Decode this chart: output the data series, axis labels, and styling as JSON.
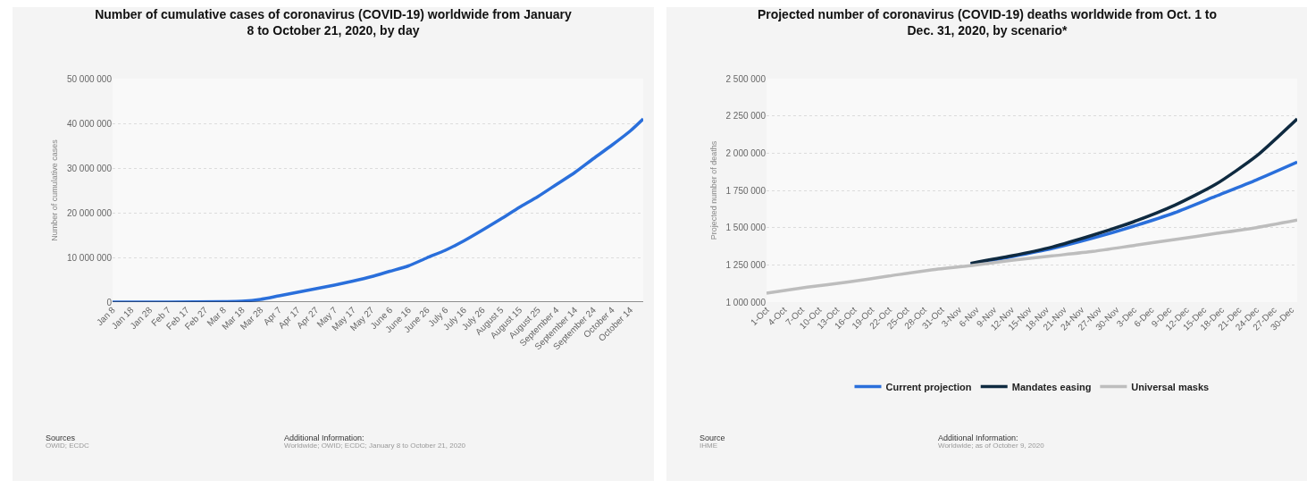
{
  "chart_data": [
    {
      "type": "line",
      "title": "Number of cumulative cases of coronavirus (COVID-19) worldwide from January 8 to October 21, 2020, by day",
      "ylabel": "Number of cumulative cases",
      "x": [
        "2020-01-08",
        "2020-02-07",
        "2020-03-08",
        "2020-03-18",
        "2020-03-28",
        "2020-04-07",
        "2020-04-17",
        "2020-04-27",
        "2020-05-07",
        "2020-05-17",
        "2020-05-27",
        "2020-06-06",
        "2020-06-16",
        "2020-06-26",
        "2020-07-06",
        "2020-07-16",
        "2020-07-26",
        "2020-08-05",
        "2020-08-15",
        "2020-08-25",
        "2020-09-04",
        "2020-09-14",
        "2020-09-24",
        "2020-10-04",
        "2020-10-14",
        "2020-10-21"
      ],
      "series": [
        {
          "color": "#2a6fdb",
          "values": [
            0,
            0,
            100000,
            200000,
            600000,
            1400000,
            2200000,
            3000000,
            3800000,
            4700000,
            5700000,
            6900000,
            8100000,
            9900000,
            11600000,
            13700000,
            16100000,
            18600000,
            21200000,
            23600000,
            26300000,
            29000000,
            32100000,
            35100000,
            38300000,
            41000000
          ]
        }
      ],
      "xlim": [
        "2020-01-08",
        "2020-10-21"
      ],
      "xticks": [
        {
          "value": "2020-01-08",
          "label": "Jan 8"
        },
        {
          "value": "2020-01-18",
          "label": "Jan 18"
        },
        {
          "value": "2020-01-28",
          "label": "Jan 28"
        },
        {
          "value": "2020-02-07",
          "label": "Feb 7"
        },
        {
          "value": "2020-02-17",
          "label": "Feb 17"
        },
        {
          "value": "2020-02-27",
          "label": "Feb 27"
        },
        {
          "value": "2020-03-08",
          "label": "Mar 8"
        },
        {
          "value": "2020-03-18",
          "label": "Mar 18"
        },
        {
          "value": "2020-03-28",
          "label": "Mar 28"
        },
        {
          "value": "2020-04-07",
          "label": "Apr 7"
        },
        {
          "value": "2020-04-17",
          "label": "Apr 17"
        },
        {
          "value": "2020-04-27",
          "label": "Apr 27"
        },
        {
          "value": "2020-05-07",
          "label": "May 7"
        },
        {
          "value": "2020-05-17",
          "label": "May 17"
        },
        {
          "value": "2020-05-27",
          "label": "May 27"
        },
        {
          "value": "2020-06-06",
          "label": "June 6"
        },
        {
          "value": "2020-06-16",
          "label": "June 16"
        },
        {
          "value": "2020-06-26",
          "label": "June 26"
        },
        {
          "value": "2020-07-06",
          "label": "July 6"
        },
        {
          "value": "2020-07-16",
          "label": "July 16"
        },
        {
          "value": "2020-07-26",
          "label": "July 26"
        },
        {
          "value": "2020-08-05",
          "label": "August 5"
        },
        {
          "value": "2020-08-15",
          "label": "August 15"
        },
        {
          "value": "2020-08-25",
          "label": "August 25"
        },
        {
          "value": "2020-09-04",
          "label": "September 4"
        },
        {
          "value": "2020-09-14",
          "label": "September 14"
        },
        {
          "value": "2020-09-24",
          "label": "September 24"
        },
        {
          "value": "2020-10-04",
          "label": "October 4"
        },
        {
          "value": "2020-10-14",
          "label": "October 14"
        }
      ],
      "ylim": [
        0,
        50000000
      ],
      "yticks": [
        {
          "value": 0,
          "label": "0"
        },
        {
          "value": 10000000,
          "label": "10 000 000"
        },
        {
          "value": 20000000,
          "label": "20 000 000"
        },
        {
          "value": 30000000,
          "label": "30 000 000"
        },
        {
          "value": 40000000,
          "label": "40 000 000"
        },
        {
          "value": 50000000,
          "label": "50 000 000"
        }
      ],
      "grid": "y",
      "marker": "none",
      "line_style": "solid",
      "legend": false,
      "annotations": [
        "Sources",
        "OWID; ECDC",
        "Additional Information:",
        "Worldwide; OWID; ECDC; January 8 to October 21, 2020"
      ]
    },
    {
      "type": "line",
      "title": "Projected number of coronavirus (COVID-19) deaths worldwide from Oct. 1 to Dec. 31, 2020, by scenario*",
      "ylabel": "Projected number of deaths",
      "x": [
        "2020-10-01",
        "2020-10-08",
        "2020-10-15",
        "2020-10-22",
        "2020-10-29",
        "2020-11-05",
        "2020-11-12",
        "2020-11-19",
        "2020-11-26",
        "2020-12-03",
        "2020-12-10",
        "2020-12-17",
        "2020-12-24",
        "2020-12-31"
      ],
      "series": [
        {
          "name": "Current projection",
          "color": "#2a6fdb",
          "values": [
            null,
            null,
            null,
            null,
            null,
            1255000,
            1305000,
            1360000,
            1430000,
            1510000,
            1600000,
            1710000,
            1820000,
            1940000
          ]
        },
        {
          "name": "Mandates easing",
          "color": "#0f2a40",
          "values": [
            null,
            null,
            null,
            null,
            null,
            1260000,
            1310000,
            1370000,
            1450000,
            1540000,
            1650000,
            1790000,
            1980000,
            2230000
          ]
        },
        {
          "name": "Universal masks",
          "color": "#bdbdbd",
          "values": [
            1060000,
            1100000,
            1135000,
            1175000,
            1215000,
            1245000,
            1280000,
            1310000,
            1340000,
            1380000,
            1420000,
            1460000,
            1500000,
            1550000
          ]
        }
      ],
      "xlim": [
        "2020-10-01",
        "2020-12-31"
      ],
      "xticks": [
        {
          "value": "2020-10-01",
          "label": "1-Oct"
        },
        {
          "value": "2020-10-04",
          "label": "4-Oct"
        },
        {
          "value": "2020-10-07",
          "label": "7-Oct"
        },
        {
          "value": "2020-10-10",
          "label": "10-Oct"
        },
        {
          "value": "2020-10-13",
          "label": "13-Oct"
        },
        {
          "value": "2020-10-16",
          "label": "16-Oct"
        },
        {
          "value": "2020-10-19",
          "label": "19-Oct"
        },
        {
          "value": "2020-10-22",
          "label": "22-Oct"
        },
        {
          "value": "2020-10-25",
          "label": "25-Oct"
        },
        {
          "value": "2020-10-28",
          "label": "28-Oct"
        },
        {
          "value": "2020-10-31",
          "label": "31-Oct"
        },
        {
          "value": "2020-11-03",
          "label": "3-Nov"
        },
        {
          "value": "2020-11-06",
          "label": "6-Nov"
        },
        {
          "value": "2020-11-09",
          "label": "9-Nov"
        },
        {
          "value": "2020-11-12",
          "label": "12-Nov"
        },
        {
          "value": "2020-11-15",
          "label": "15-Nov"
        },
        {
          "value": "2020-11-18",
          "label": "18-Nov"
        },
        {
          "value": "2020-11-21",
          "label": "21-Nov"
        },
        {
          "value": "2020-11-24",
          "label": "24-Nov"
        },
        {
          "value": "2020-11-27",
          "label": "27-Nov"
        },
        {
          "value": "2020-11-30",
          "label": "30-Nov"
        },
        {
          "value": "2020-12-03",
          "label": "3-Dec"
        },
        {
          "value": "2020-12-06",
          "label": "6-Dec"
        },
        {
          "value": "2020-12-09",
          "label": "9-Dec"
        },
        {
          "value": "2020-12-12",
          "label": "12-Dec"
        },
        {
          "value": "2020-12-15",
          "label": "15-Dec"
        },
        {
          "value": "2020-12-18",
          "label": "18-Dec"
        },
        {
          "value": "2020-12-21",
          "label": "21-Dec"
        },
        {
          "value": "2020-12-24",
          "label": "24-Dec"
        },
        {
          "value": "2020-12-27",
          "label": "27-Dec"
        },
        {
          "value": "2020-12-30",
          "label": "30-Dec"
        }
      ],
      "ylim": [
        1000000,
        2500000
      ],
      "yticks": [
        {
          "value": 1000000,
          "label": "1 000 000"
        },
        {
          "value": 1250000,
          "label": "1 250 000"
        },
        {
          "value": 1500000,
          "label": "1 500 000"
        },
        {
          "value": 1750000,
          "label": "1 750 000"
        },
        {
          "value": 2000000,
          "label": "2 000 000"
        },
        {
          "value": 2250000,
          "label": "2 250 000"
        },
        {
          "value": 2500000,
          "label": "2 500 000"
        }
      ],
      "grid": "y",
      "marker": "none",
      "line_style": "solid",
      "legend": "bottom",
      "annotations": [
        "Source",
        "IHME",
        "Additional Information:",
        "Worldwide; as of October 9, 2020"
      ]
    }
  ]
}
